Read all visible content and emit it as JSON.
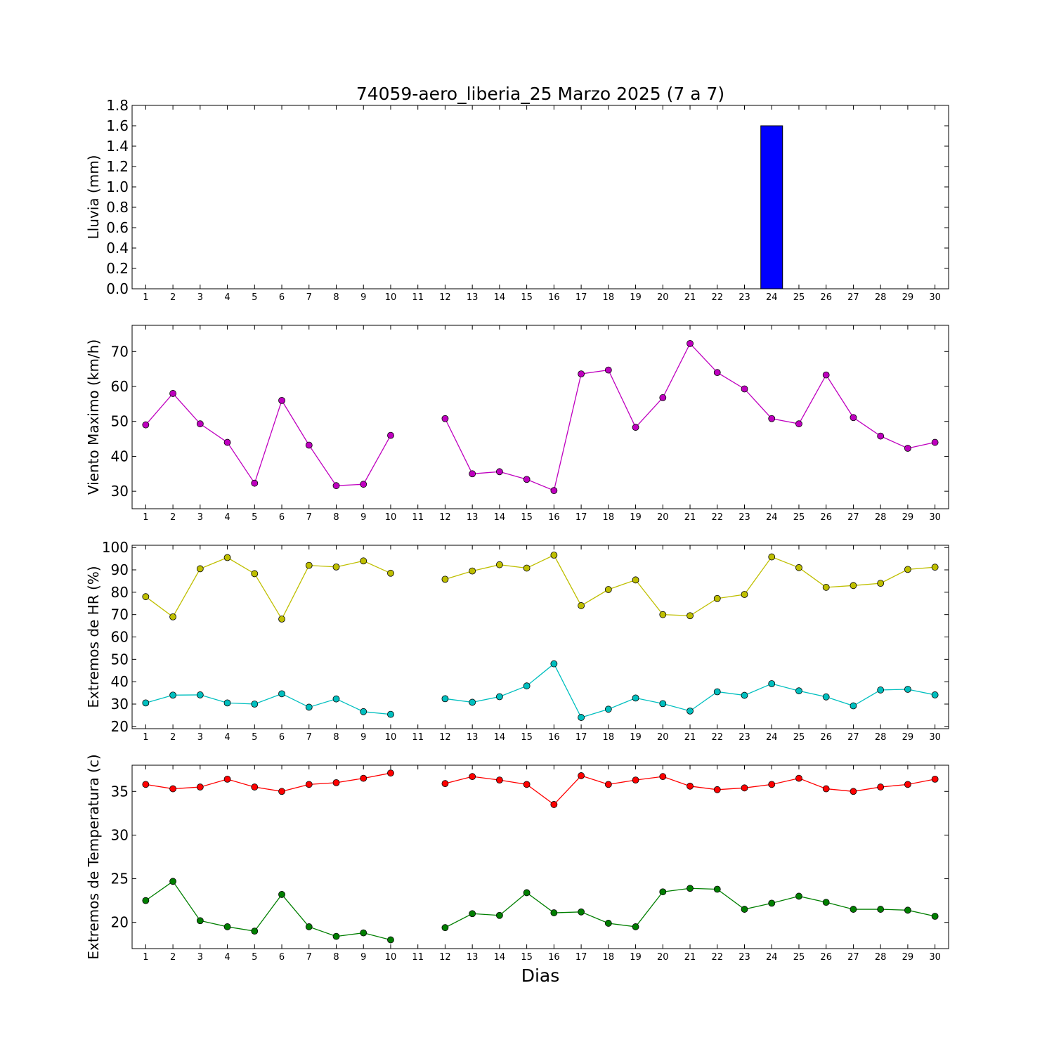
{
  "chart_data": {
    "title": "74059-aero_liberia_25 Marzo 2025  (7 a 7)",
    "xlabel": "Dias",
    "days": [
      1,
      2,
      3,
      4,
      5,
      6,
      7,
      8,
      9,
      10,
      11,
      12,
      13,
      14,
      15,
      16,
      17,
      18,
      19,
      20,
      21,
      22,
      23,
      24,
      25,
      26,
      27,
      28,
      29,
      30
    ],
    "panels": [
      {
        "type": "bar",
        "ylabel": "Lluvia (mm)",
        "ylim": [
          0.0,
          1.8
        ],
        "yticks": [
          "0.0",
          "0.2",
          "0.4",
          "0.6",
          "0.8",
          "1.0",
          "1.2",
          "1.4",
          "1.6",
          "1.8"
        ],
        "series": [
          {
            "color": "#0000ff",
            "values": [
              0,
              0,
              0,
              0,
              0,
              0,
              0,
              0,
              0,
              0,
              null,
              0,
              0,
              0,
              0,
              0,
              0,
              0,
              0,
              0,
              0,
              0,
              0,
              1.6,
              0,
              0,
              0,
              0,
              0,
              0
            ]
          }
        ]
      },
      {
        "type": "line",
        "ylabel": "Viento Maximo (km/h)",
        "ylim": [
          25,
          77.5
        ],
        "yticks": [
          "30",
          "40",
          "50",
          "60",
          "70"
        ],
        "series": [
          {
            "color": "#bf00bf",
            "values": [
              49,
              58,
              49.3,
              44,
              32.3,
              56,
              43.2,
              31.6,
              32,
              46,
              null,
              50.8,
              35,
              35.6,
              33.4,
              30.2,
              63.6,
              64.7,
              48.3,
              56.8,
              72.3,
              64,
              59.3,
              50.8,
              49.3,
              63.3,
              51.1,
              45.8,
              42.3,
              44
            ]
          }
        ]
      },
      {
        "type": "line",
        "ylabel": "Extremos de HR (%)",
        "ylim": [
          19,
          101
        ],
        "yticks": [
          "20",
          "30",
          "40",
          "50",
          "60",
          "70",
          "80",
          "90",
          "100"
        ],
        "series": [
          {
            "color": "#bfbf00",
            "values": [
              78,
              69,
              90.5,
              95.5,
              88.3,
              68,
              92,
              91.3,
              94,
              88.5,
              null,
              85.8,
              89.5,
              92.3,
              90.8,
              96.6,
              74,
              81.2,
              85.5,
              70,
              69.5,
              77.2,
              79,
              95.8,
              91,
              82.2,
              83,
              84,
              90.2,
              91.2
            ]
          },
          {
            "color": "#00bfbf",
            "values": [
              30.5,
              34,
              34.1,
              30.5,
              30,
              34.6,
              28.6,
              32.3,
              26.6,
              25.4,
              null,
              32.4,
              30.8,
              33.3,
              38.1,
              48,
              24,
              27.7,
              32.7,
              30.2,
              26.9,
              35.5,
              33.9,
              39.1,
              35.9,
              33.2,
              29.2,
              36.3,
              36.6,
              34.1
            ]
          }
        ]
      },
      {
        "type": "line",
        "ylabel": "Extremos de Temperatura (c)",
        "ylim": [
          17,
          38
        ],
        "yticks": [
          "20",
          "25",
          "30",
          "35"
        ],
        "series": [
          {
            "color": "#ff0000",
            "values": [
              35.8,
              35.3,
              35.5,
              36.4,
              35.5,
              35,
              35.8,
              36,
              36.5,
              37.1,
              null,
              35.9,
              36.7,
              36.3,
              35.8,
              33.5,
              36.8,
              35.8,
              36.3,
              36.7,
              35.6,
              35.2,
              35.4,
              35.8,
              36.5,
              35.3,
              35,
              35.5,
              35.8,
              36.4
            ]
          },
          {
            "color": "#007f00",
            "values": [
              22.5,
              24.7,
              20.2,
              19.5,
              19,
              23.2,
              19.5,
              18.4,
              18.8,
              18,
              null,
              19.4,
              21,
              20.8,
              23.4,
              21.1,
              21.2,
              19.9,
              19.5,
              23.5,
              23.9,
              23.8,
              21.5,
              22.2,
              23,
              22.3,
              21.5,
              21.5,
              21.4,
              20.7
            ]
          }
        ]
      }
    ]
  }
}
